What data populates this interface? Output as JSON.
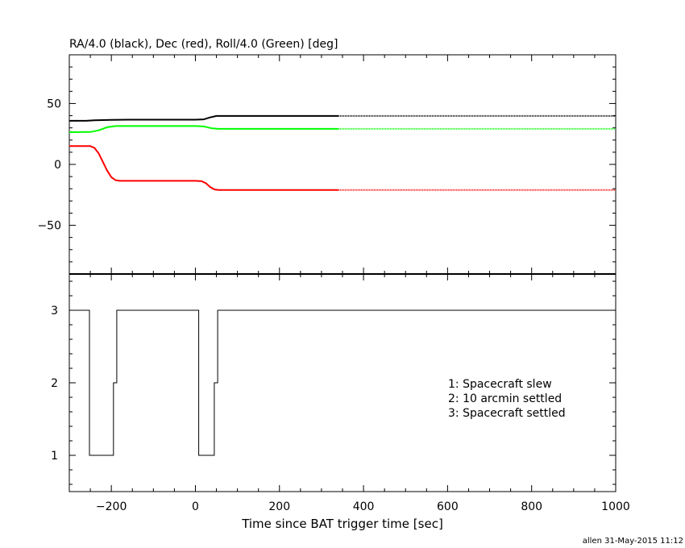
{
  "chart_data": [
    {
      "type": "line",
      "title": "RA/4.0 (black), Dec (red), Roll/4.0 (Green) [deg]",
      "xlim": [
        -300,
        1000
      ],
      "ylim": [
        -90,
        90
      ],
      "yticks": [
        -50,
        0,
        50
      ],
      "grid": false,
      "series": [
        {
          "color": "#000000",
          "solid": [
            [
              -300,
              35.8
            ],
            [
              -260,
              35.8
            ],
            [
              -240,
              36.2
            ],
            [
              -200,
              36.6
            ],
            [
              -160,
              36.7
            ],
            [
              -100,
              36.7
            ],
            [
              0,
              36.7
            ],
            [
              20,
              37.0
            ],
            [
              35,
              38.6
            ],
            [
              50,
              39.8
            ],
            [
              100,
              39.8
            ],
            [
              200,
              39.8
            ],
            [
              340,
              39.8
            ]
          ],
          "dotted": [
            [
              340,
              39.8
            ],
            [
              1000,
              39.8
            ]
          ]
        },
        {
          "color": "#00ff00",
          "solid": [
            [
              -300,
              26.5
            ],
            [
              -250,
              26.6
            ],
            [
              -230,
              28.0
            ],
            [
              -210,
              30.5
            ],
            [
              -190,
              31.5
            ],
            [
              -150,
              31.5
            ],
            [
              0,
              31.5
            ],
            [
              20,
              31.2
            ],
            [
              40,
              29.6
            ],
            [
              55,
              29.2
            ],
            [
              200,
              29.2
            ],
            [
              340,
              29.2
            ]
          ],
          "dotted": [
            [
              340,
              29.2
            ],
            [
              1000,
              29.2
            ]
          ]
        },
        {
          "color": "#ff0000",
          "solid": [
            [
              -300,
              15.0
            ],
            [
              -250,
              15.0
            ],
            [
              -240,
              13.5
            ],
            [
              -230,
              9.0
            ],
            [
              -220,
              2.0
            ],
            [
              -210,
              -5.0
            ],
            [
              -200,
              -10.5
            ],
            [
              -190,
              -13.0
            ],
            [
              -180,
              -13.5
            ],
            [
              -100,
              -13.5
            ],
            [
              0,
              -13.5
            ],
            [
              15,
              -13.8
            ],
            [
              25,
              -15.5
            ],
            [
              35,
              -18.5
            ],
            [
              45,
              -20.5
            ],
            [
              55,
              -21.0
            ],
            [
              200,
              -21.0
            ],
            [
              340,
              -21.0
            ]
          ],
          "dotted": [
            [
              340,
              -21.0
            ],
            [
              1000,
              -21.0
            ]
          ]
        }
      ]
    },
    {
      "type": "line",
      "xlabel": "Time since BAT trigger time [sec]",
      "xlim": [
        -300,
        1000
      ],
      "ylim": [
        0.5,
        3.5
      ],
      "xticks": [
        -200,
        0,
        200,
        400,
        600,
        800,
        1000
      ],
      "yticks": [
        1,
        2,
        3
      ],
      "grid": false,
      "series": [
        {
          "color": "#000000",
          "step": [
            [
              -300,
              3
            ],
            [
              -252,
              3
            ],
            [
              -252,
              1
            ],
            [
              -195,
              1
            ],
            [
              -195,
              2
            ],
            [
              -187,
              2
            ],
            [
              -187,
              3
            ],
            [
              8,
              3
            ],
            [
              8,
              1
            ],
            [
              45,
              1
            ],
            [
              45,
              2
            ],
            [
              53,
              2
            ],
            [
              53,
              3
            ],
            [
              1000,
              3
            ]
          ]
        }
      ],
      "legend": [
        "1: Spacecraft slew",
        "2: 10 arcmin settled",
        "3: Spacecraft settled"
      ]
    }
  ],
  "footer": "allen 31-May-2015 11:12"
}
